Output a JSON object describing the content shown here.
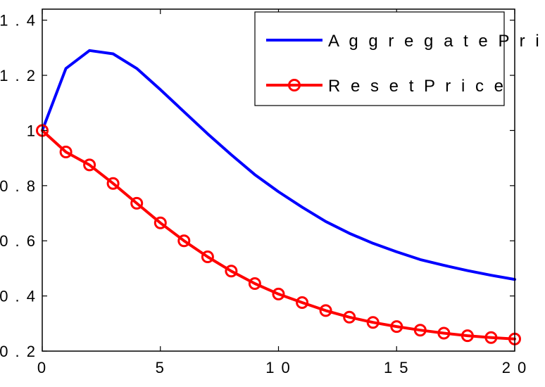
{
  "chart_data": {
    "type": "line",
    "x": [
      0,
      1,
      2,
      3,
      4,
      5,
      6,
      7,
      8,
      9,
      10,
      11,
      12,
      13,
      14,
      15,
      16,
      17,
      18,
      19,
      20
    ],
    "xlim": [
      0,
      20
    ],
    "ylim": [
      0.2,
      1.44
    ],
    "xticks": [
      0,
      5,
      10,
      15,
      20
    ],
    "xtick_labels": [
      "0",
      "5",
      "1 0",
      "1 5",
      "2 0"
    ],
    "yticks": [
      0.2,
      0.4,
      0.6,
      0.8,
      1.0,
      1.2,
      1.4
    ],
    "ytick_labels": [
      "0 . 2",
      "0 . 4",
      "0 . 6",
      "0 . 8",
      "1",
      "1 . 2",
      "1 . 4"
    ],
    "grid": false,
    "legend_position": "top-right",
    "series": [
      {
        "name": "A g g r e g a t e P r i c e",
        "color": "#0000ff",
        "marker": "none",
        "values": [
          1.0,
          1.225,
          1.29,
          1.278,
          1.225,
          1.148,
          1.068,
          0.988,
          0.912,
          0.84,
          0.778,
          0.722,
          0.67,
          0.627,
          0.591,
          0.56,
          0.532,
          0.511,
          0.492,
          0.475,
          0.46
        ]
      },
      {
        "name": "R e s e t P r i c e",
        "color": "#ff0000",
        "marker": "circle",
        "values": [
          1.0,
          0.922,
          0.875,
          0.808,
          0.736,
          0.665,
          0.6,
          0.542,
          0.49,
          0.445,
          0.407,
          0.376,
          0.347,
          0.323,
          0.304,
          0.289,
          0.276,
          0.265,
          0.256,
          0.249,
          0.244
        ]
      }
    ]
  }
}
